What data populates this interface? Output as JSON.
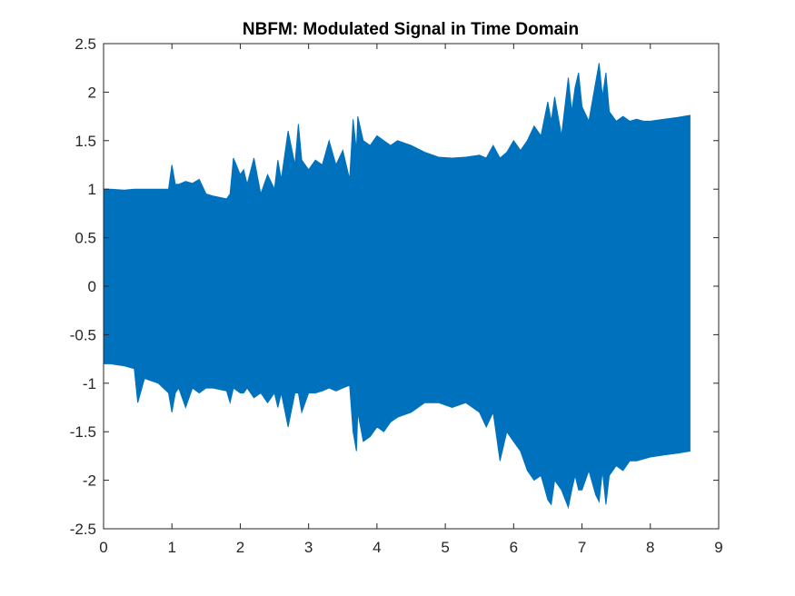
{
  "chart_data": {
    "type": "area",
    "title": "NBFM: Modulated Signal in Time Domain",
    "xlabel": "",
    "ylabel": "",
    "xlim": [
      0,
      9
    ],
    "ylim": [
      -2.5,
      2.5
    ],
    "x_ticks": [
      0,
      1,
      2,
      3,
      4,
      5,
      6,
      7,
      8,
      9
    ],
    "y_ticks": [
      2.5,
      2,
      1.5,
      1,
      0.5,
      0,
      -0.5,
      -1,
      -1.5,
      -2,
      -2.5
    ],
    "x_tick_labels": [
      "0",
      "1",
      "2",
      "3",
      "4",
      "5",
      "6",
      "7",
      "8",
      "9"
    ],
    "y_tick_labels": [
      "2.5",
      "2",
      "1.5",
      "1",
      "0.5",
      "0",
      "-0.5",
      "-1",
      "-1.5",
      "-2",
      "-2.5"
    ],
    "grid": false,
    "series_color": "#0072BD",
    "envelope": {
      "x": [
        0,
        0.1,
        0.3,
        0.45,
        0.5,
        0.6,
        0.8,
        0.95,
        1.0,
        1.05,
        1.1,
        1.2,
        1.3,
        1.4,
        1.5,
        1.6,
        1.8,
        1.85,
        1.9,
        2.0,
        2.05,
        2.1,
        2.2,
        2.3,
        2.4,
        2.5,
        2.55,
        2.6,
        2.7,
        2.8,
        2.85,
        2.9,
        3.0,
        3.1,
        3.2,
        3.3,
        3.4,
        3.5,
        3.6,
        3.65,
        3.7,
        3.72,
        3.8,
        3.9,
        4.0,
        4.1,
        4.2,
        4.3,
        4.5,
        4.7,
        4.9,
        5.1,
        5.3,
        5.5,
        5.6,
        5.7,
        5.8,
        5.9,
        6.0,
        6.1,
        6.2,
        6.3,
        6.4,
        6.5,
        6.55,
        6.6,
        6.7,
        6.8,
        6.85,
        6.9,
        6.95,
        7.0,
        7.1,
        7.2,
        7.25,
        7.3,
        7.35,
        7.4,
        7.5,
        7.6,
        7.7,
        7.8,
        7.9,
        8.0,
        8.2,
        8.4,
        8.58
      ],
      "upper": [
        1.0,
        1.0,
        0.99,
        1.0,
        1.0,
        1.0,
        1.0,
        1.0,
        1.25,
        1.05,
        1.05,
        1.08,
        1.06,
        1.1,
        0.95,
        0.93,
        0.9,
        0.95,
        1.32,
        1.15,
        1.2,
        1.05,
        1.32,
        0.95,
        1.15,
        1.0,
        1.3,
        1.1,
        1.6,
        1.25,
        1.67,
        1.3,
        1.2,
        1.3,
        1.25,
        1.5,
        1.25,
        1.4,
        1.1,
        1.72,
        1.4,
        1.75,
        1.5,
        1.45,
        1.55,
        1.5,
        1.45,
        1.5,
        1.45,
        1.38,
        1.33,
        1.32,
        1.33,
        1.35,
        1.32,
        1.45,
        1.32,
        1.38,
        1.5,
        1.4,
        1.5,
        1.65,
        1.55,
        1.9,
        1.7,
        1.95,
        1.55,
        2.15,
        1.8,
        2.05,
        2.2,
        1.85,
        1.7,
        2.1,
        2.3,
        1.95,
        2.2,
        1.8,
        1.7,
        1.75,
        1.7,
        1.72,
        1.7,
        1.7,
        1.72,
        1.74,
        1.76
      ],
      "lower": [
        -0.8,
        -0.8,
        -0.82,
        -0.85,
        -1.2,
        -0.95,
        -1.0,
        -1.1,
        -1.3,
        -1.1,
        -1.05,
        -1.25,
        -1.05,
        -1.1,
        -1.05,
        -1.05,
        -1.08,
        -1.2,
        -1.05,
        -1.1,
        -1.1,
        -1.05,
        -1.15,
        -1.1,
        -1.2,
        -1.1,
        -1.25,
        -1.1,
        -1.45,
        -1.1,
        -1.1,
        -1.3,
        -1.1,
        -1.1,
        -1.08,
        -1.05,
        -1.08,
        -1.05,
        -1.02,
        -1.5,
        -1.7,
        -1.3,
        -1.6,
        -1.55,
        -1.45,
        -1.5,
        -1.4,
        -1.35,
        -1.3,
        -1.2,
        -1.2,
        -1.25,
        -1.2,
        -1.3,
        -1.45,
        -1.3,
        -1.8,
        -1.5,
        -1.6,
        -1.7,
        -1.9,
        -2.0,
        -1.95,
        -2.2,
        -2.25,
        -2.0,
        -2.1,
        -2.28,
        -2.1,
        -1.95,
        -2.1,
        -2.1,
        -1.9,
        -2.15,
        -2.22,
        -1.9,
        -2.25,
        -1.95,
        -1.85,
        -1.9,
        -1.8,
        -1.8,
        -1.78,
        -1.76,
        -1.74,
        -1.72,
        -1.7
      ]
    }
  }
}
